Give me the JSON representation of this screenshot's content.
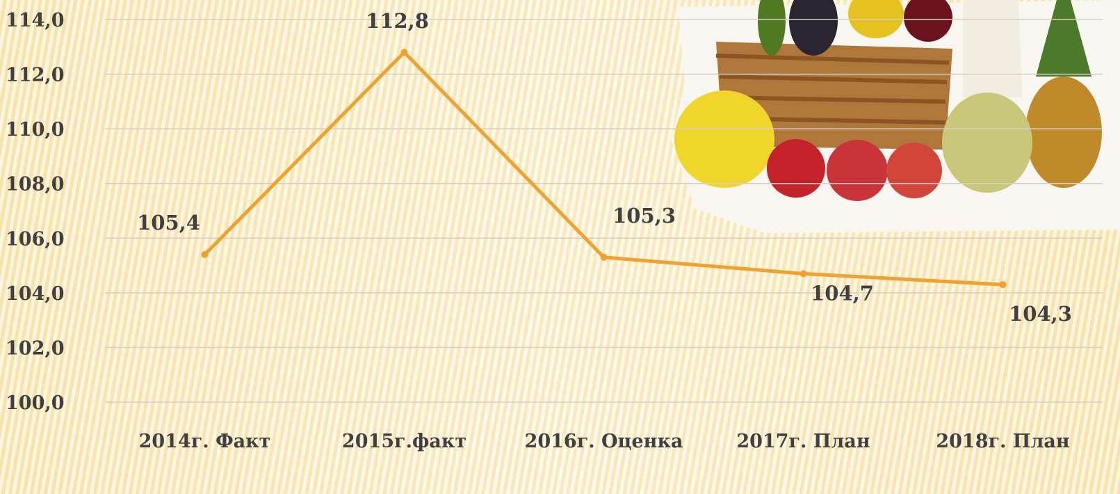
{
  "chart_data": {
    "type": "line",
    "categories": [
      "2014г. Факт",
      "2015г.факт",
      "2016г. Оценка",
      "2017г. План",
      "2018г. План"
    ],
    "series": [
      {
        "color": "#f0a12e",
        "values": [
          105.4,
          112.8,
          105.3,
          104.7,
          104.3
        ],
        "value_labels": [
          "105,4",
          "112,8",
          "105,3",
          "104,7",
          "104,3"
        ]
      }
    ],
    "ylim": [
      100,
      114
    ],
    "yticks": [
      {
        "value": 100,
        "label": "100,0"
      },
      {
        "value": 102,
        "label": "102,0"
      },
      {
        "value": 104,
        "label": "104,0"
      },
      {
        "value": 106,
        "label": "106,0"
      },
      {
        "value": 108,
        "label": "108,0"
      },
      {
        "value": 110,
        "label": "110,0"
      },
      {
        "value": 112,
        "label": "112,0"
      },
      {
        "value": 114,
        "label": "114,0"
      }
    ],
    "grid": true
  }
}
